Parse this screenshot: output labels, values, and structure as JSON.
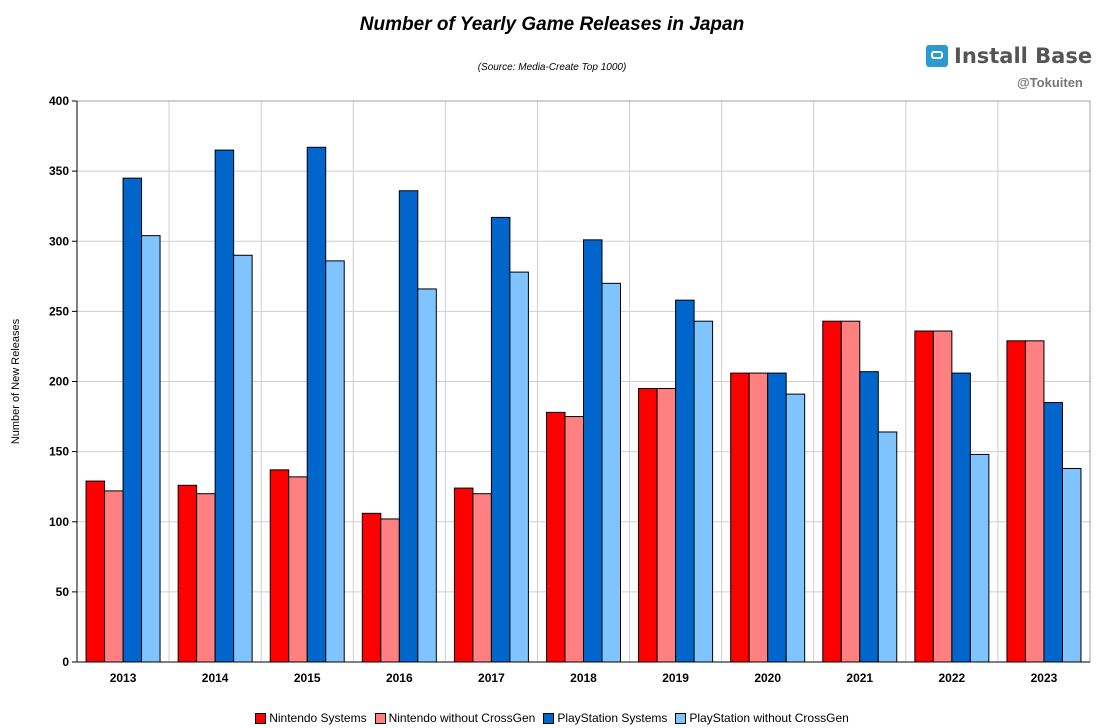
{
  "header": {
    "title": "Number of Yearly Game Releases in Japan",
    "subtitle": "(Source: Media-Create Top 1000)"
  },
  "brand": {
    "name": "Install Base",
    "handle": "@Tokuiten",
    "logo_icon": "gamepad-icon"
  },
  "colors": {
    "nintendo": "#ff0000",
    "nintendo_no_crossgen": "#ff8080",
    "playstation": "#0066cc",
    "playstation_no_crossgen": "#80c4ff",
    "grid": "#cfcfcf",
    "plot_background": "#ffffff"
  },
  "chart_data": {
    "type": "bar",
    "title": "Number of Yearly Game Releases in Japan",
    "subtitle": "(Source: Media-Create Top 1000)",
    "xlabel": "",
    "ylabel": "Number of New Releases",
    "ylim": [
      0,
      400
    ],
    "yticks": [
      0,
      50,
      100,
      150,
      200,
      250,
      300,
      350,
      400
    ],
    "grid": true,
    "legend_position": "bottom",
    "categories": [
      "2013",
      "2014",
      "2015",
      "2016",
      "2017",
      "2018",
      "2019",
      "2020",
      "2021",
      "2022",
      "2023"
    ],
    "series": [
      {
        "name": "Nintendo Systems",
        "color": "#ff0000",
        "values": [
          129,
          126,
          137,
          106,
          124,
          178,
          195,
          206,
          243,
          236,
          229
        ]
      },
      {
        "name": "Nintendo without CrossGen",
        "color": "#ff8080",
        "values": [
          122,
          120,
          132,
          102,
          120,
          175,
          195,
          206,
          243,
          236,
          229
        ]
      },
      {
        "name": "PlayStation Systems",
        "color": "#0066cc",
        "values": [
          345,
          365,
          367,
          336,
          317,
          301,
          258,
          206,
          207,
          206,
          185
        ]
      },
      {
        "name": "PlayStation without CrossGen",
        "color": "#80c4ff",
        "values": [
          304,
          290,
          286,
          266,
          278,
          270,
          243,
          191,
          164,
          148,
          138
        ]
      }
    ]
  }
}
